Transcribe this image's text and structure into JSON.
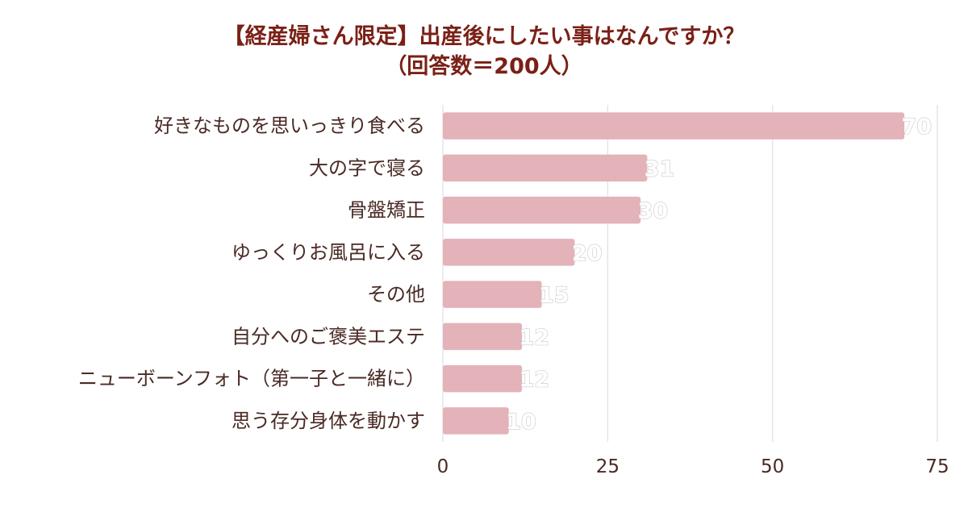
{
  "chart_data": {
    "type": "bar",
    "orientation": "horizontal",
    "title": "【経産婦さん限定】出産後にしたい事はなんですか？",
    "subtitle": "（回答数＝200人）",
    "categories": [
      "好きなものを思いっきり食べる",
      "大の字で寝る",
      "骨盤矯正",
      "ゆっくりお風呂に入る",
      "その他",
      "自分へのご褒美エステ",
      "ニューボーンフォト（第一子と一緒に）",
      "思う存分身体を動かす"
    ],
    "values": [
      70,
      31,
      30,
      20,
      15,
      12,
      12,
      10
    ],
    "value_labels": [
      "70",
      "31",
      "30",
      "20",
      "15",
      "12",
      "12",
      "10"
    ],
    "xlim": [
      0,
      75
    ],
    "x_ticks": [
      0,
      25,
      50,
      75
    ],
    "x_tick_labels": [
      "0",
      "25",
      "50",
      "75"
    ],
    "xlabel": "",
    "ylabel": "",
    "grid": "vertical",
    "legend": "none",
    "colors": {
      "bar": "#e4b2b9",
      "title": "#7a2016",
      "label": "#4a2a24",
      "grid": "#e6e6e6",
      "value_label_fill": "#ffffff",
      "value_label_stroke": "#c9c9c9"
    }
  }
}
